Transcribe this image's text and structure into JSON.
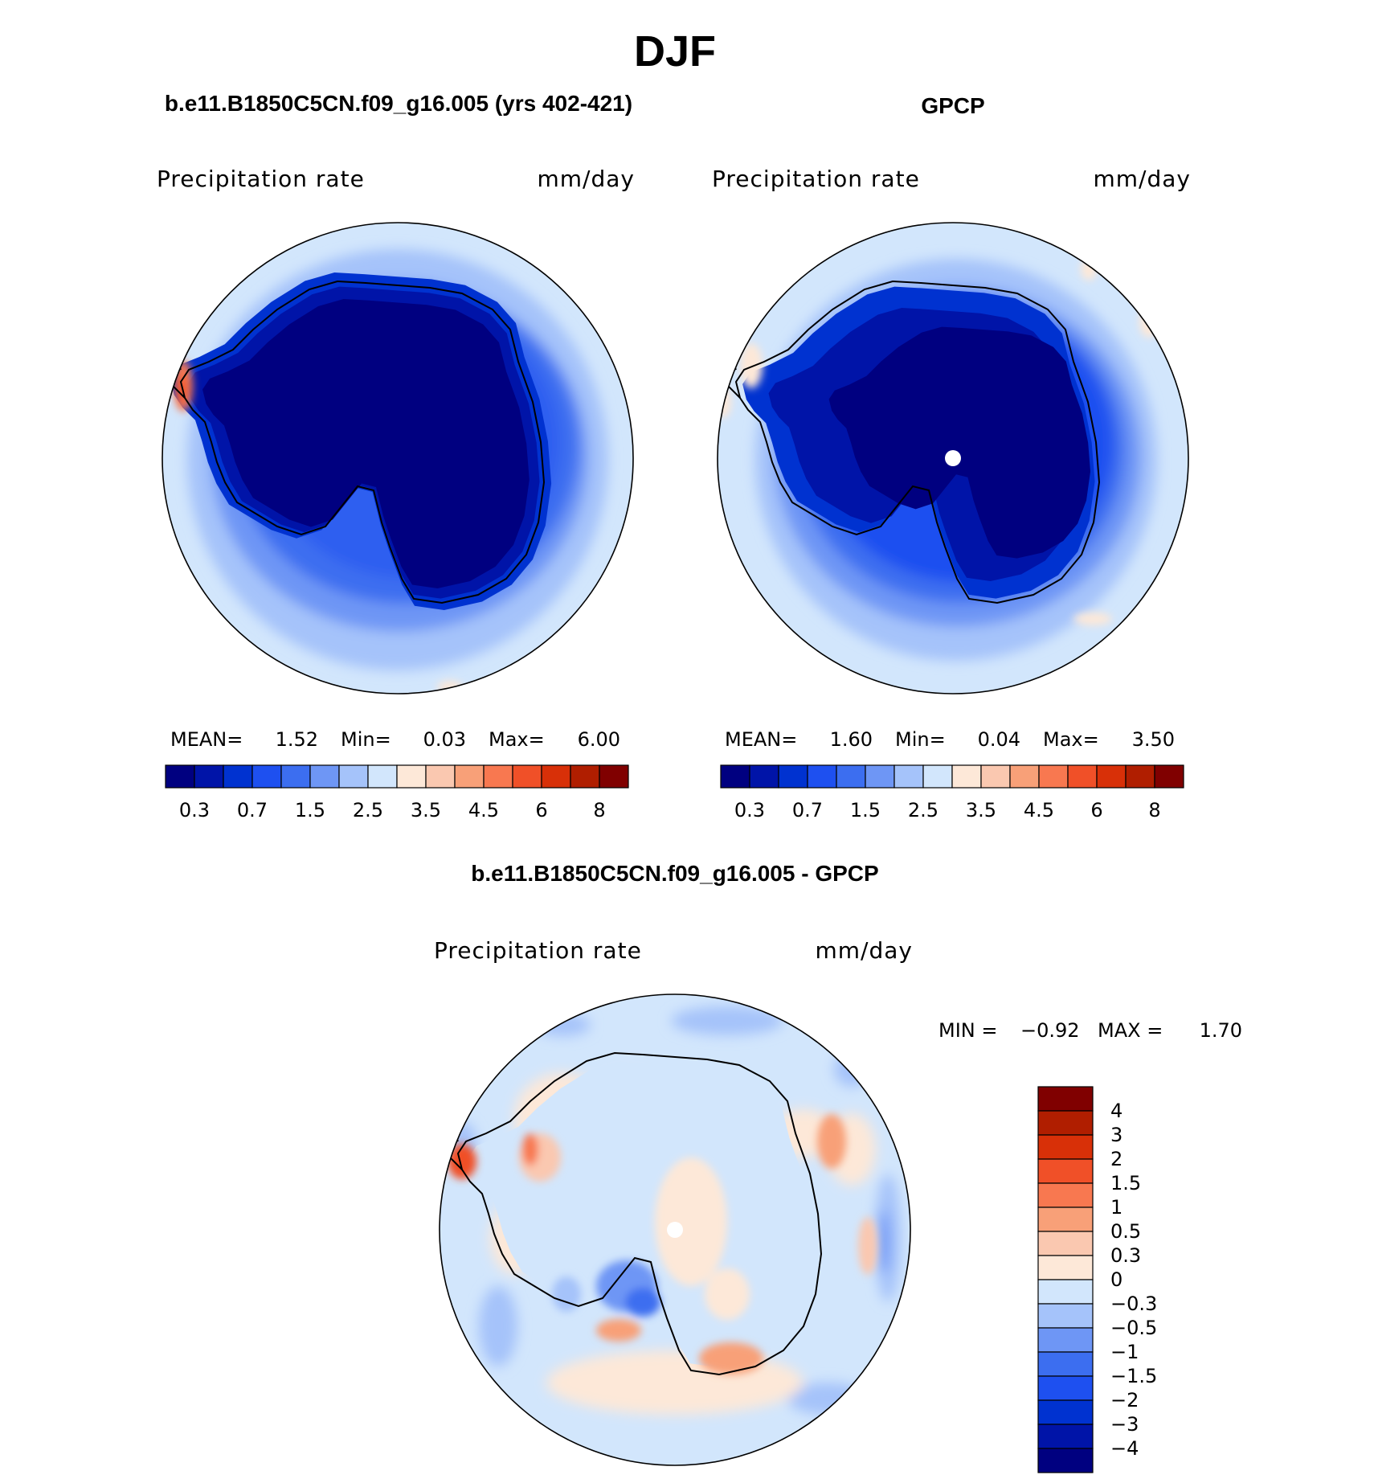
{
  "title": "DJF",
  "panels": [
    {
      "id": "model",
      "title": "b.e11.B1850C5CN.f09_g16.005 (yrs 402-421)",
      "variable": "Precipitation  rate",
      "units": "mm/day",
      "stats": {
        "mean_label": "MEAN=",
        "mean": "1.52",
        "min_label": "Min=",
        "min": "0.03",
        "max_label": "Max=",
        "max": "6.00"
      }
    },
    {
      "id": "obs",
      "title": "GPCP",
      "variable": "Precipitation  rate",
      "units": "mm/day",
      "stats": {
        "mean_label": "MEAN=",
        "mean": "1.60",
        "min_label": "Min=",
        "min": "0.04",
        "max_label": "Max=",
        "max": "3.50"
      }
    },
    {
      "id": "diff",
      "title": "b.e11.B1850C5CN.f09_g16.005 - GPCP",
      "variable": "Precipitation  rate",
      "units": "mm/day",
      "stats": {
        "min_label": "MIN =",
        "min": "−0.92",
        "max_label": "MAX =",
        "max": "1.70"
      }
    }
  ],
  "colorbar_abs": {
    "colors": [
      "#000080",
      "#0014a8",
      "#0032d0",
      "#1e50f0",
      "#3c6ef0",
      "#6e96f5",
      "#a5c3fa",
      "#d2e6fc",
      "#fde8d8",
      "#fac8b0",
      "#f8a078",
      "#f87850",
      "#f05028",
      "#d83008",
      "#b01e00",
      "#800000"
    ],
    "labels": [
      "0.3",
      "0.7",
      "1.5",
      "2.5",
      "3.5",
      "4.5",
      "6",
      "8"
    ]
  },
  "colorbar_diff": {
    "colors": [
      "#800000",
      "#b01e00",
      "#d83008",
      "#f05028",
      "#f87850",
      "#f8a078",
      "#fac8b0",
      "#fde8d8",
      "#d2e6fc",
      "#a5c3fa",
      "#6e96f5",
      "#3c6ef0",
      "#1e50f0",
      "#0032d0",
      "#0014a8",
      "#000080"
    ],
    "labels": [
      "4",
      "3",
      "2",
      "1.5",
      "1",
      "0.5",
      "0.3",
      "0",
      "−0.3",
      "−0.5",
      "−1",
      "−1.5",
      "−2",
      "−3",
      "−4"
    ]
  }
}
